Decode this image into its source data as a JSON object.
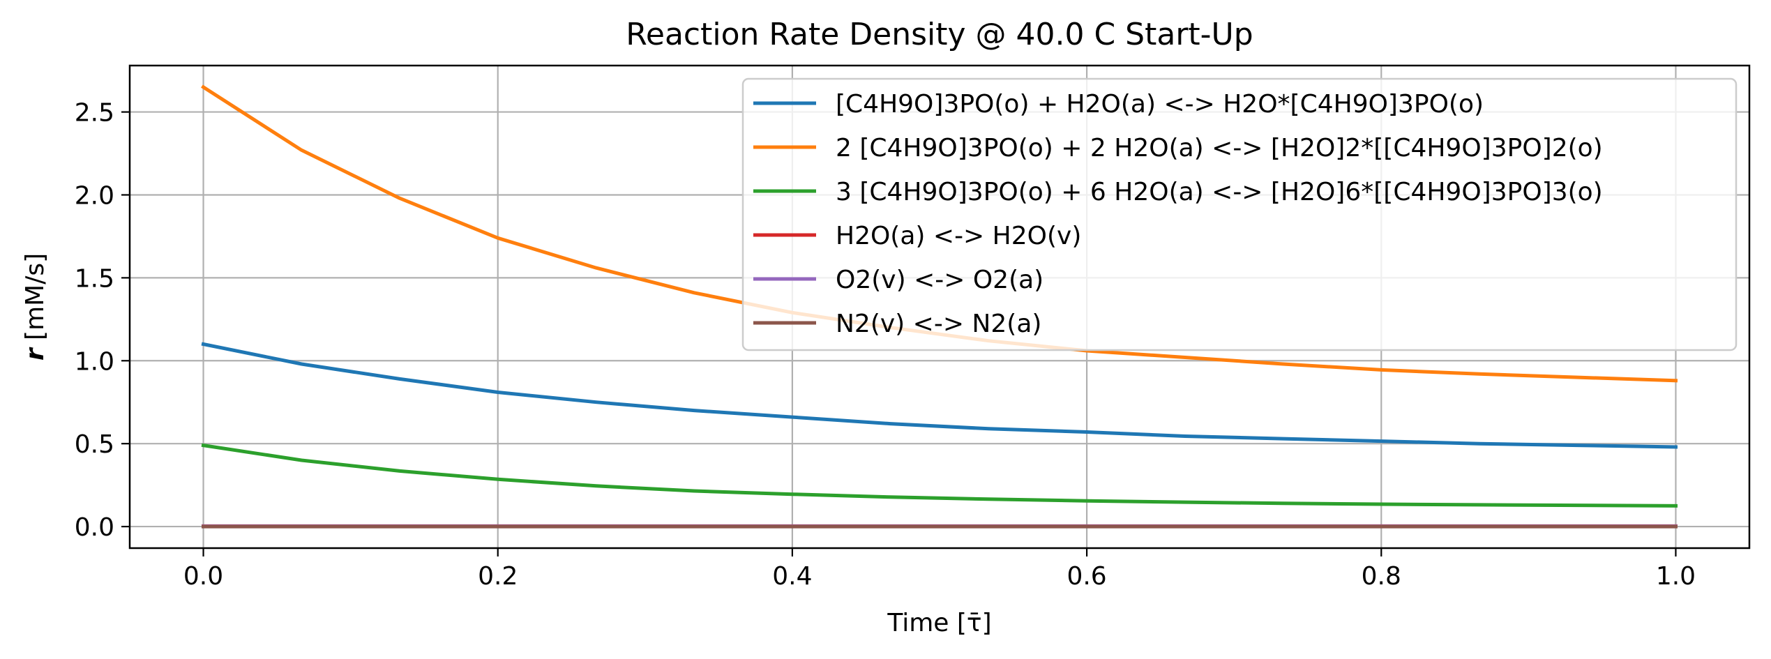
{
  "chart_data": {
    "type": "line",
    "title": "Reaction Rate Density @ 40.0 C Start-Up",
    "xlabel": "Time [τ̄]",
    "ylabel_symbol": "r",
    "ylabel_unit": " [mM/s]",
    "xlim": [
      -0.05,
      1.05
    ],
    "ylim": [
      -0.13,
      2.78
    ],
    "x_ticks": [
      "0.0",
      "0.2",
      "0.4",
      "0.6",
      "0.8",
      "1.0"
    ],
    "y_ticks": [
      "0.0",
      "0.5",
      "1.0",
      "1.5",
      "2.0",
      "2.5"
    ],
    "grid": true,
    "legend_position": "top-right",
    "x": [
      0.0,
      0.0667,
      0.1333,
      0.2,
      0.2667,
      0.3333,
      0.4,
      0.4667,
      0.5333,
      0.6,
      0.6667,
      0.7333,
      0.8,
      0.8667,
      0.9333,
      1.0
    ],
    "series": [
      {
        "name": "[C4H9O]3PO(o) + H2O(a) <-> H2O*[C4H9O]3PO(o)",
        "color": "#1f77b4",
        "values": [
          1.1,
          0.98,
          0.89,
          0.81,
          0.75,
          0.7,
          0.66,
          0.62,
          0.59,
          0.57,
          0.545,
          0.53,
          0.515,
          0.5,
          0.49,
          0.48
        ]
      },
      {
        "name": "2 [C4H9O]3PO(o) + 2 H2O(a) <-> [H2O]2*[[C4H9O]3PO]2(o)",
        "color": "#ff7f0e",
        "values": [
          2.65,
          2.27,
          1.98,
          1.74,
          1.56,
          1.41,
          1.29,
          1.2,
          1.12,
          1.06,
          1.02,
          0.98,
          0.945,
          0.92,
          0.9,
          0.88
        ]
      },
      {
        "name": "3 [C4H9O]3PO(o) + 6 H2O(a) <-> [H2O]6*[[C4H9O]3PO]3(o)",
        "color": "#2ca02c",
        "values": [
          0.49,
          0.4,
          0.335,
          0.285,
          0.245,
          0.215,
          0.195,
          0.178,
          0.165,
          0.155,
          0.147,
          0.14,
          0.135,
          0.131,
          0.128,
          0.125
        ]
      },
      {
        "name": "H2O(a) <-> H2O(v)",
        "color": "#d62728",
        "values": [
          0.003,
          0.003,
          0.003,
          0.003,
          0.003,
          0.003,
          0.003,
          0.003,
          0.003,
          0.003,
          0.003,
          0.003,
          0.003,
          0.003,
          0.003,
          0.003
        ]
      },
      {
        "name": "O2(v) <-> O2(a)",
        "color": "#9467bd",
        "values": [
          0.002,
          0.002,
          0.002,
          0.002,
          0.002,
          0.002,
          0.002,
          0.002,
          0.002,
          0.002,
          0.002,
          0.002,
          0.002,
          0.002,
          0.002,
          0.002
        ]
      },
      {
        "name": "N2(v) <-> N2(a)",
        "color": "#8c564b",
        "values": [
          0.0,
          0.0,
          0.0,
          0.0,
          0.0,
          0.0,
          0.0,
          0.0,
          0.0,
          0.0,
          0.0,
          0.0,
          0.0,
          0.0,
          0.0,
          0.0
        ]
      }
    ]
  }
}
